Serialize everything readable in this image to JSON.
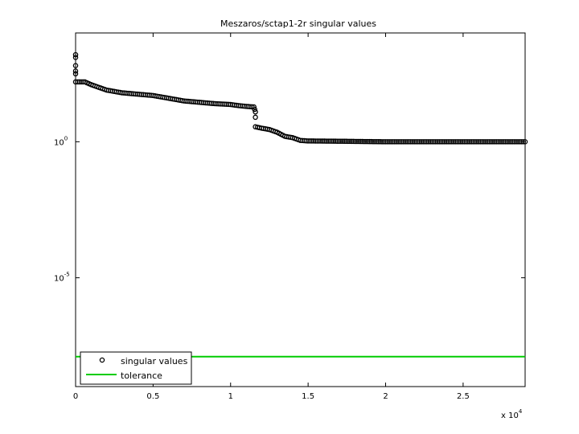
{
  "chart_data": {
    "type": "scatter",
    "title": "Meszaros/sctap1-2r singular values",
    "xlabel": "",
    "ylabel": "",
    "x_scale_label": "x 10",
    "x_scale_exponent": "4",
    "xlim": [
      0,
      29000
    ],
    "ylim_log10": [
      -9,
      4
    ],
    "y_scale": "log",
    "grid": false,
    "legend_position": "bottom-left",
    "x_ticks": [
      {
        "value": 0,
        "label": "0"
      },
      {
        "value": 5000,
        "label": "0.5"
      },
      {
        "value": 10000,
        "label": "1"
      },
      {
        "value": 15000,
        "label": "1.5"
      },
      {
        "value": 20000,
        "label": "2"
      },
      {
        "value": 25000,
        "label": "2.5"
      }
    ],
    "y_ticks": [
      {
        "log10": 0,
        "base": "10",
        "exponent": "0"
      },
      {
        "log10": -5,
        "base": "10",
        "exponent": "-5"
      }
    ],
    "series": [
      {
        "name": "singular values",
        "marker": "open-circle",
        "color": "#000000",
        "points_log10": [
          [
            0,
            3.2
          ],
          [
            0,
            3.1
          ],
          [
            0,
            2.8
          ],
          [
            0,
            2.6
          ],
          [
            0,
            2.5
          ],
          [
            0,
            2.2
          ],
          [
            600,
            2.2
          ],
          [
            1000,
            2.1
          ],
          [
            1500,
            2.0
          ],
          [
            2000,
            1.9
          ],
          [
            3000,
            1.8
          ],
          [
            4000,
            1.75
          ],
          [
            5000,
            1.7
          ],
          [
            6000,
            1.6
          ],
          [
            7000,
            1.5
          ],
          [
            8000,
            1.45
          ],
          [
            9000,
            1.4
          ],
          [
            10000,
            1.37
          ],
          [
            10500,
            1.33
          ],
          [
            11000,
            1.3
          ],
          [
            11500,
            1.28
          ],
          [
            11600,
            1.1
          ],
          [
            11600,
            0.9
          ],
          [
            11600,
            0.55
          ],
          [
            12000,
            0.5
          ],
          [
            12500,
            0.45
          ],
          [
            13000,
            0.35
          ],
          [
            13500,
            0.2
          ],
          [
            14000,
            0.15
          ],
          [
            14500,
            0.05
          ],
          [
            15000,
            0.03
          ],
          [
            17000,
            0.02
          ],
          [
            20000,
            0.0
          ],
          [
            23000,
            0.0
          ],
          [
            26000,
            0.0
          ],
          [
            29000,
            0.0
          ]
        ]
      },
      {
        "name": "tolerance",
        "marker": "line",
        "color": "#00cc00",
        "points_log10": [
          [
            0,
            -7.9
          ],
          [
            29000,
            -7.9
          ]
        ]
      }
    ]
  }
}
